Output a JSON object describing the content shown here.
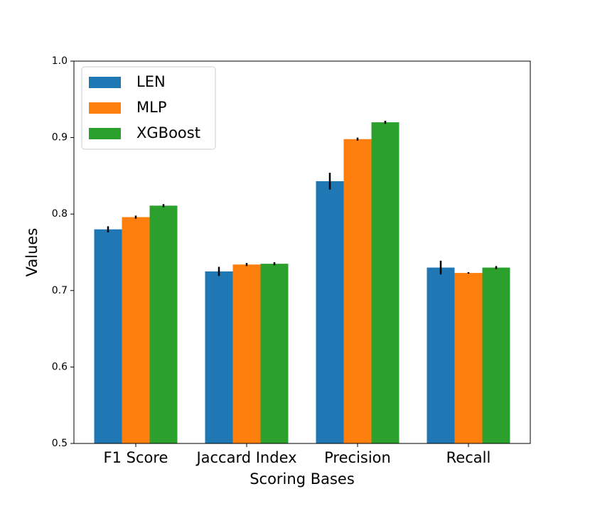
{
  "chart_data": {
    "type": "bar",
    "xlabel": "Scoring Bases",
    "ylabel": "Values",
    "categories": [
      "F1 Score",
      "Jaccard Index",
      "Precision",
      "Recall"
    ],
    "series": [
      {
        "name": "LEN",
        "color": "#1f77b4",
        "values": [
          0.78,
          0.725,
          0.843,
          0.73
        ],
        "errors": [
          0.004,
          0.006,
          0.011,
          0.009
        ]
      },
      {
        "name": "MLP",
        "color": "#ff7f0e",
        "values": [
          0.796,
          0.734,
          0.898,
          0.723
        ],
        "errors": [
          0.002,
          0.002,
          0.002,
          0.001
        ]
      },
      {
        "name": "XGBoost",
        "color": "#2ca02c",
        "values": [
          0.811,
          0.735,
          0.92,
          0.73
        ],
        "errors": [
          0.002,
          0.002,
          0.002,
          0.002
        ]
      }
    ],
    "ylim": [
      0.5,
      1.0
    ],
    "yticks": [
      0.5,
      0.6,
      0.7,
      0.8,
      0.9,
      {
        "value": 1.0,
        "label": "1.0"
      }
    ],
    "legend": "upper left"
  }
}
